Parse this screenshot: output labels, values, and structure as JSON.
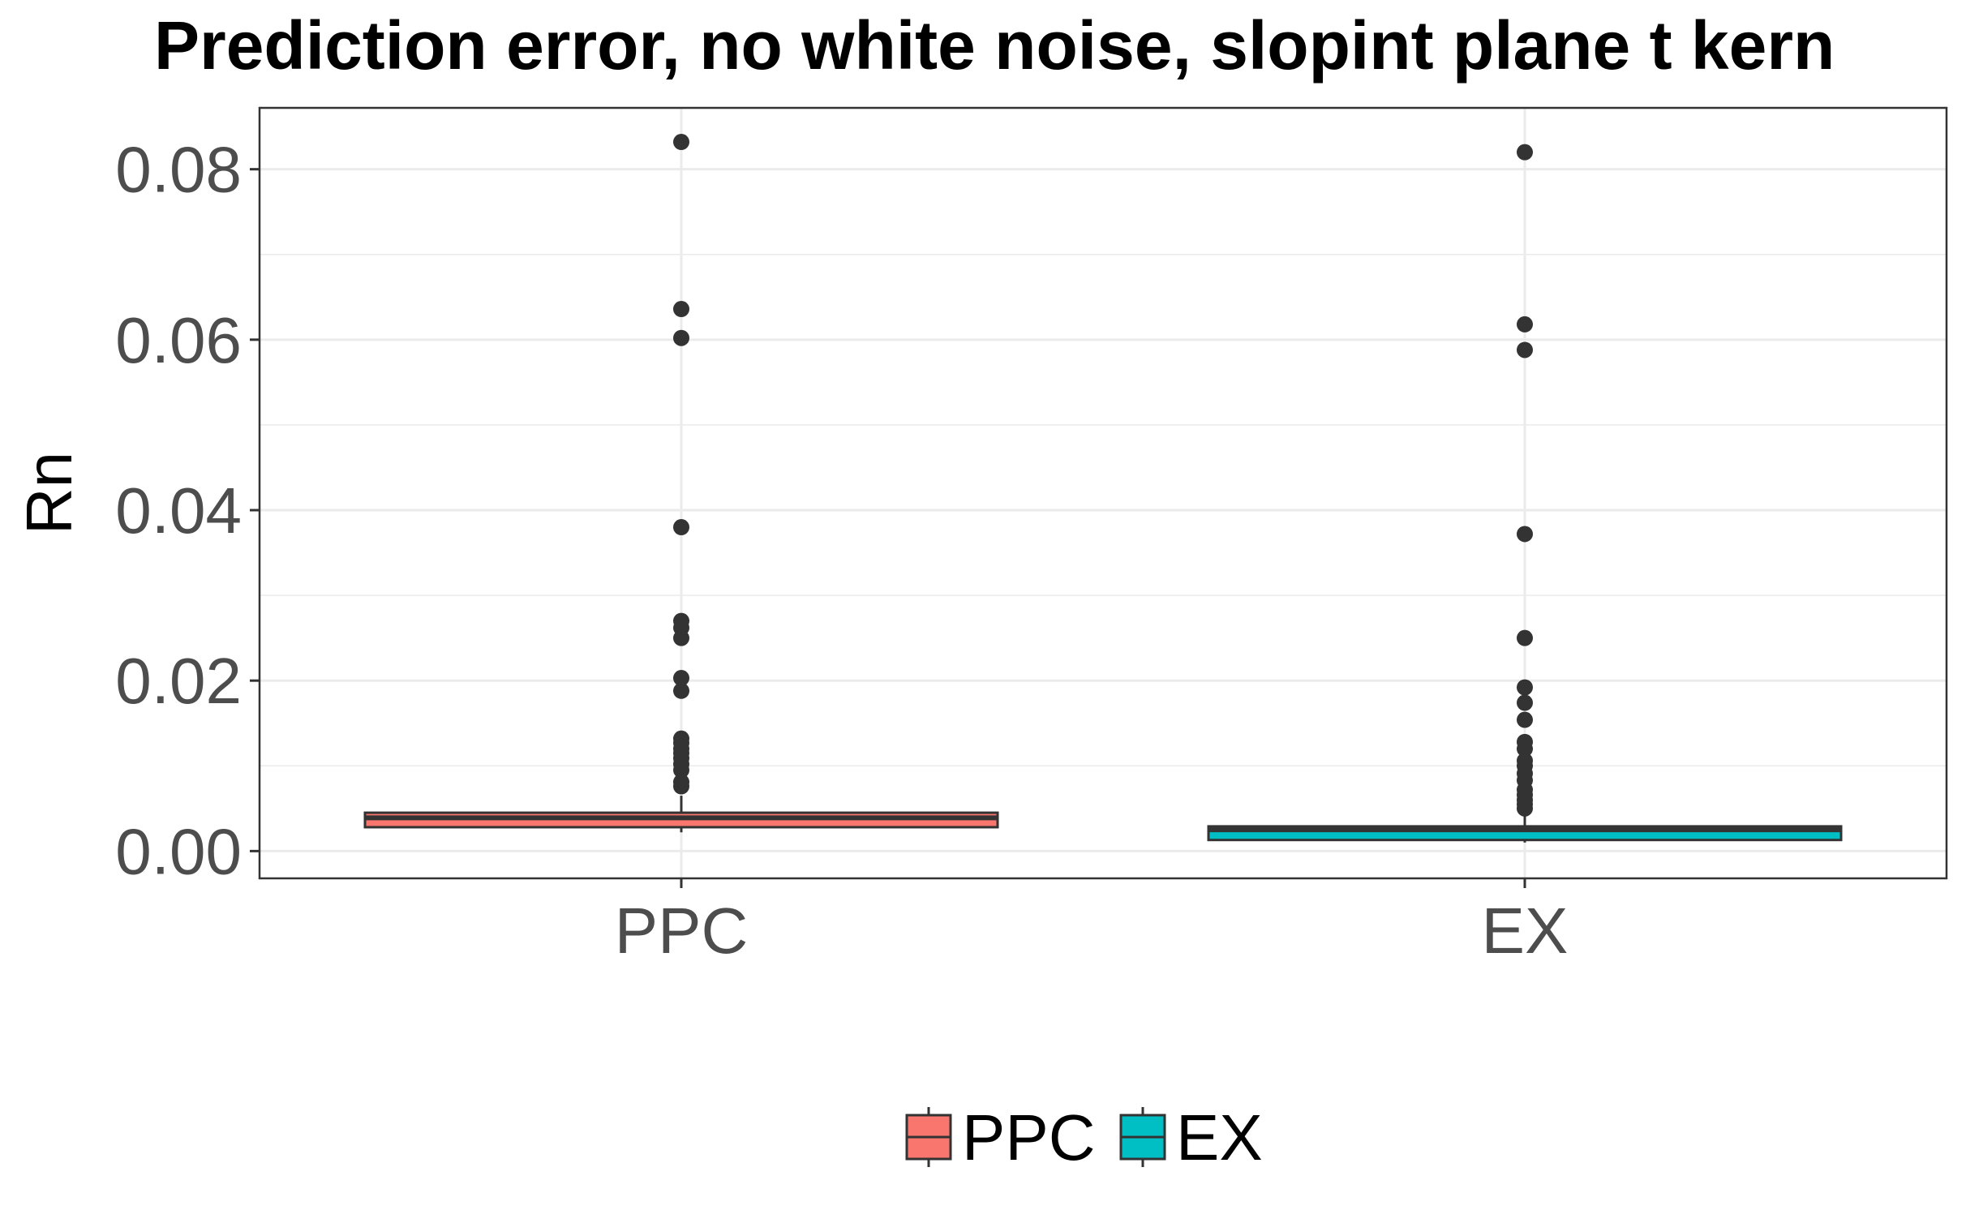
{
  "chart_data": {
    "type": "box",
    "title": "Prediction error, no white noise, slopint plane t kern",
    "xlabel": "",
    "ylabel": "Rn",
    "ylim": [
      -0.0032,
      0.0872
    ],
    "yticks": [
      "0.00",
      "0.02",
      "0.04",
      "0.06",
      "0.08"
    ],
    "ytick_values": [
      0,
      0.02,
      0.04,
      0.06,
      0.08
    ],
    "categories": [
      "PPC",
      "EX"
    ],
    "grid": true,
    "legend_position": "bottom",
    "series": [
      {
        "name": "PPC",
        "color": "#F8766D",
        "min": 0.0022,
        "q1": 0.0028,
        "median": 0.0039,
        "q3": 0.0045,
        "max": 0.0065,
        "outliers": [
          0.0832,
          0.0636,
          0.0602,
          0.038,
          0.027,
          0.0262,
          0.025,
          0.0203,
          0.0188,
          0.0132,
          0.0127,
          0.012,
          0.0115,
          0.0109,
          0.0102,
          0.0095,
          0.0081,
          0.0076
        ]
      },
      {
        "name": "EX",
        "color": "#00BFC4",
        "min": 0.001,
        "q1": 0.0013,
        "median": 0.0025,
        "q3": 0.0029,
        "max": 0.0045,
        "outliers": [
          0.082,
          0.0618,
          0.0588,
          0.0372,
          0.025,
          0.0192,
          0.0174,
          0.0154,
          0.0128,
          0.012,
          0.0106,
          0.01,
          0.0091,
          0.0083,
          0.0072,
          0.0066,
          0.006,
          0.0055,
          0.005
        ]
      }
    ]
  }
}
